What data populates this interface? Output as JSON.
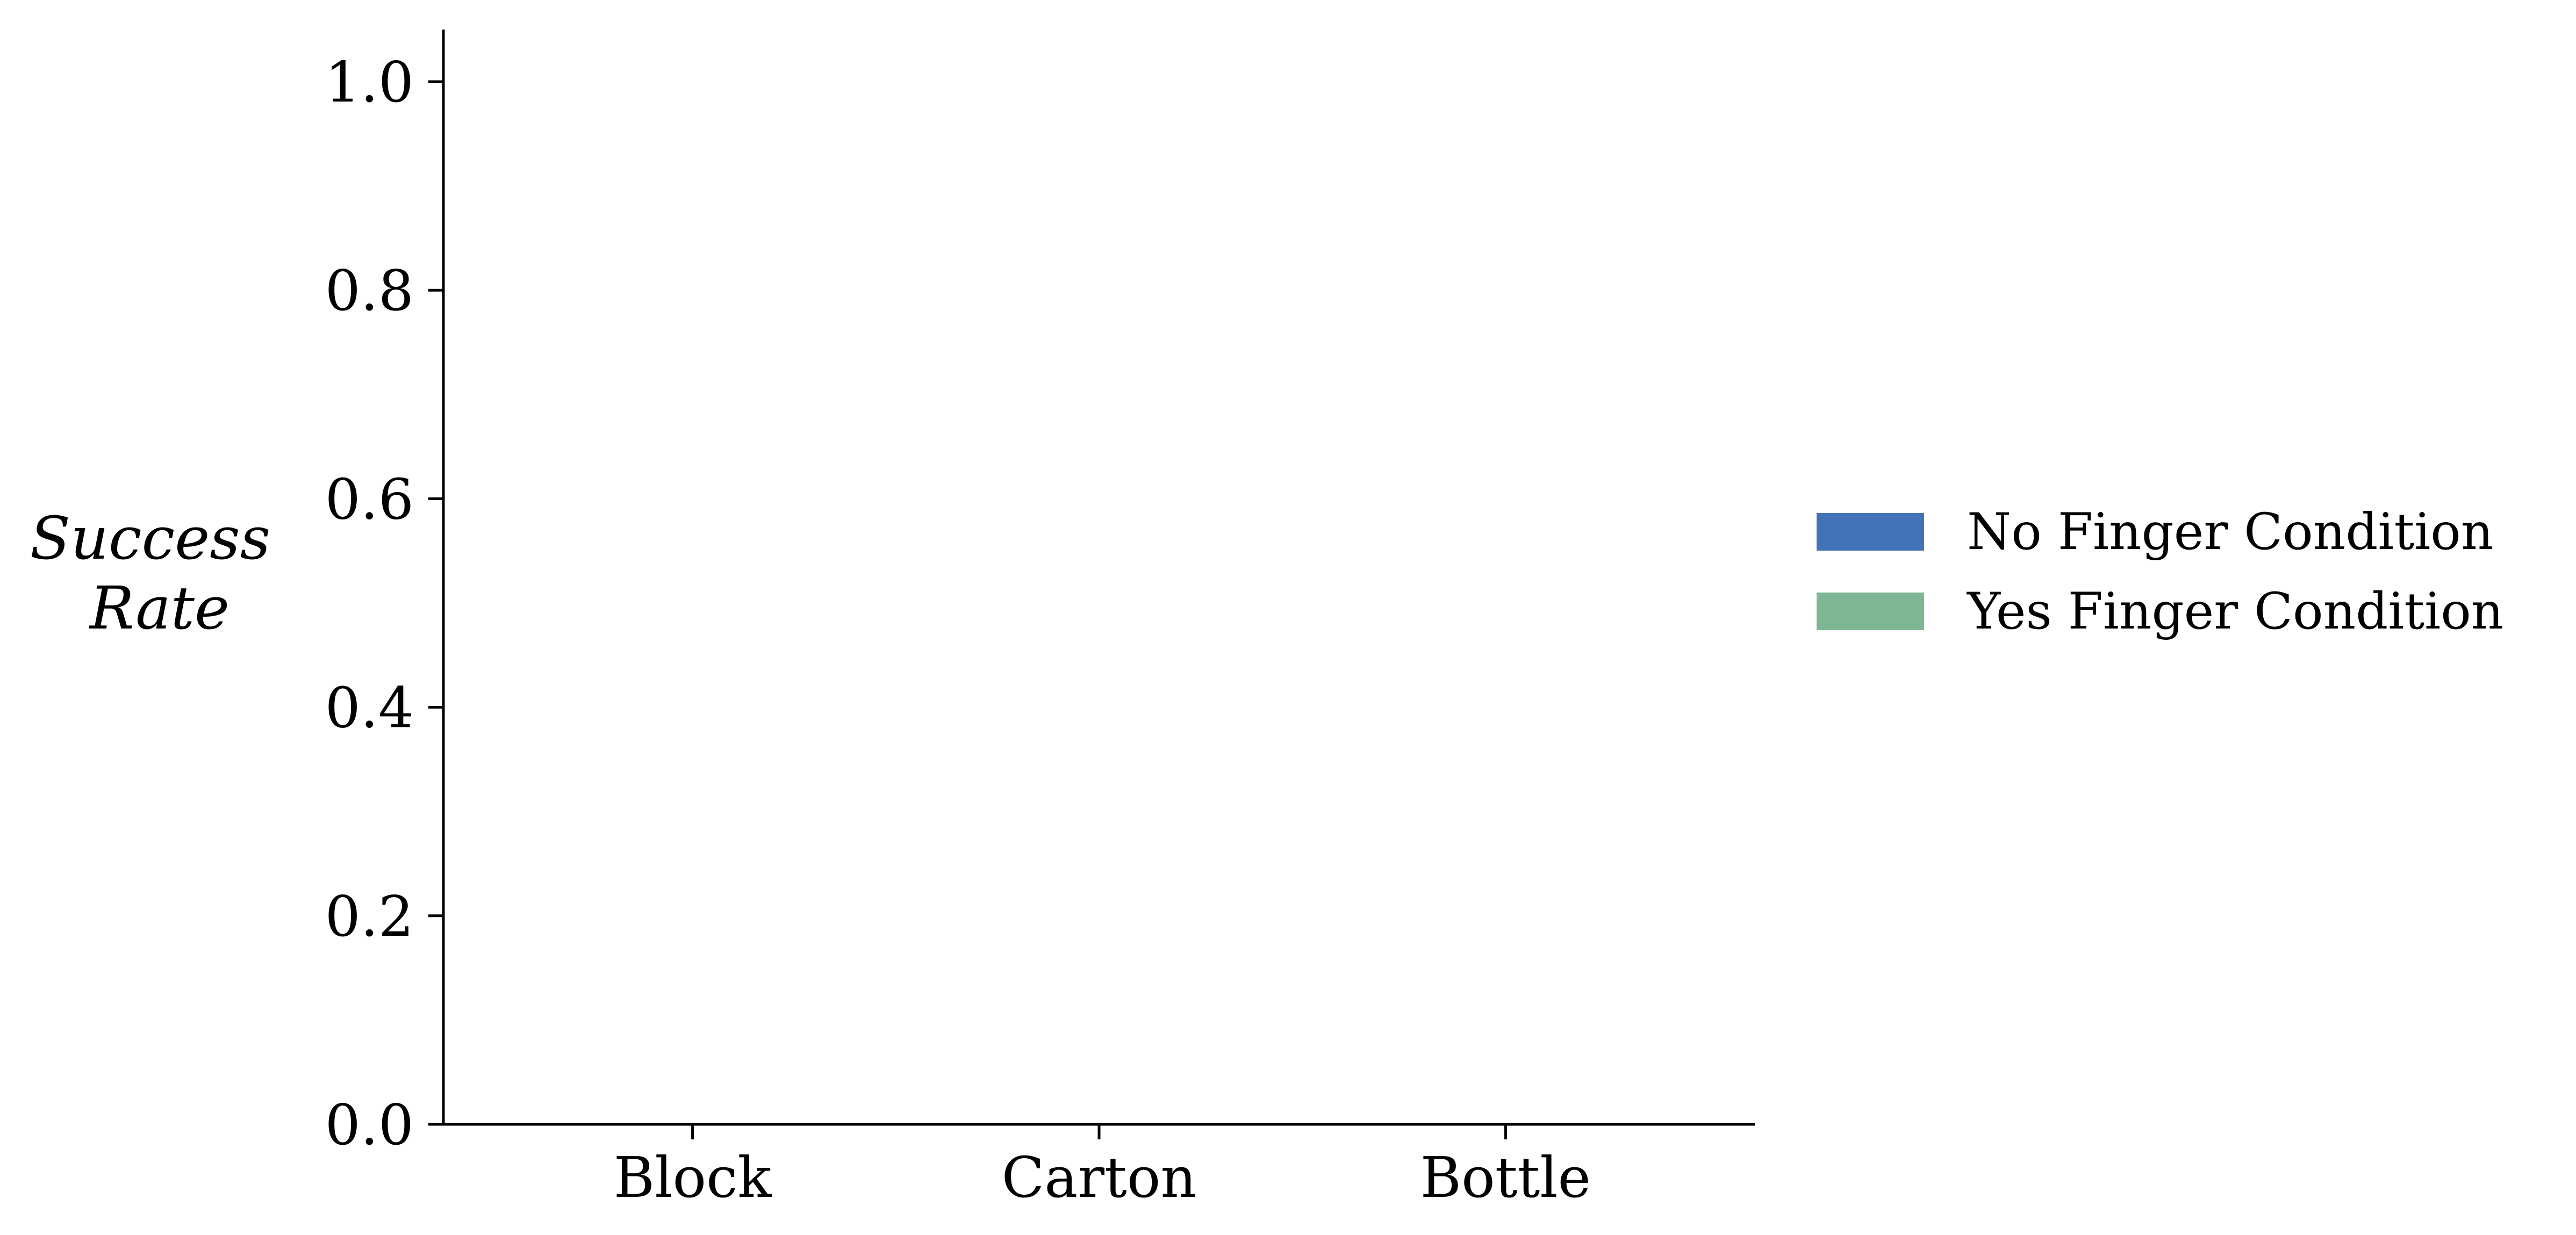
{
  "chart_data": {
    "type": "bar",
    "title": "",
    "xlabel": "",
    "ylabel": [
      "Success",
      "Rate"
    ],
    "categories": [
      "Block",
      "Carton",
      "Bottle"
    ],
    "ylim": [
      0,
      1.05
    ],
    "yticks": [
      0.0,
      0.2,
      0.4,
      0.6,
      0.8,
      1.0
    ],
    "ytick_labels": [
      "0.0",
      "0.2",
      "0.4",
      "0.6",
      "0.8",
      "1.0"
    ],
    "series": [
      {
        "name": "No Finger Condition",
        "color": "#4472b8",
        "values": [
          0,
          0,
          0
        ]
      },
      {
        "name": "Yes Finger Condition",
        "color": "#7fb795",
        "values": [
          0,
          0,
          0
        ]
      }
    ],
    "grid": false,
    "legend_position": "right"
  }
}
